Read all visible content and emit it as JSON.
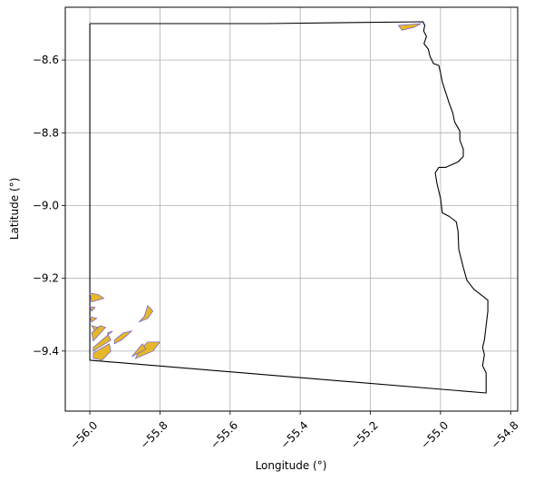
{
  "chart_data": {
    "type": "map",
    "title": "",
    "xlabel": "Longitude (°)",
    "ylabel": "Latitude (°)",
    "xlim": [
      -56.07,
      -54.78
    ],
    "ylim": [
      -9.565,
      -8.455
    ],
    "grid": true,
    "x_ticks": [
      {
        "value": -56.0,
        "label": "−56.0"
      },
      {
        "value": -55.8,
        "label": "−55.8"
      },
      {
        "value": -55.6,
        "label": "−55.6"
      },
      {
        "value": -55.4,
        "label": "−55.4"
      },
      {
        "value": -55.2,
        "label": "−55.2"
      },
      {
        "value": -55.0,
        "label": "−55.0"
      },
      {
        "value": -54.8,
        "label": "−54.8"
      }
    ],
    "y_ticks": [
      {
        "value": -8.6,
        "label": "−8.6"
      },
      {
        "value": -8.8,
        "label": "−8.8"
      },
      {
        "value": -9.0,
        "label": "−9.0"
      },
      {
        "value": -9.2,
        "label": "−9.2"
      },
      {
        "value": -9.4,
        "label": "−9.4"
      }
    ],
    "boundary": {
      "color": "#000000",
      "points": [
        [
          -56.0,
          -8.5
        ],
        [
          -55.5,
          -8.5
        ],
        [
          -55.05,
          -8.495
        ],
        [
          -55.045,
          -8.505
        ],
        [
          -55.048,
          -8.52
        ],
        [
          -55.04,
          -8.535
        ],
        [
          -55.047,
          -8.555
        ],
        [
          -55.035,
          -8.57
        ],
        [
          -55.03,
          -8.59
        ],
        [
          -55.02,
          -8.61
        ],
        [
          -55.005,
          -8.615
        ],
        [
          -55.0,
          -8.635
        ],
        [
          -54.995,
          -8.66
        ],
        [
          -54.985,
          -8.69
        ],
        [
          -54.975,
          -8.72
        ],
        [
          -54.965,
          -8.745
        ],
        [
          -54.96,
          -8.77
        ],
        [
          -54.945,
          -8.795
        ],
        [
          -54.945,
          -8.82
        ],
        [
          -54.935,
          -8.845
        ],
        [
          -54.935,
          -8.865
        ],
        [
          -54.95,
          -8.88
        ],
        [
          -54.985,
          -8.895
        ],
        [
          -55.005,
          -8.895
        ],
        [
          -55.015,
          -8.91
        ],
        [
          -55.01,
          -8.94
        ],
        [
          -55.0,
          -8.98
        ],
        [
          -54.995,
          -9.02
        ],
        [
          -54.975,
          -9.03
        ],
        [
          -54.955,
          -9.045
        ],
        [
          -54.95,
          -9.07
        ],
        [
          -54.948,
          -9.12
        ],
        [
          -54.935,
          -9.17
        ],
        [
          -54.925,
          -9.205
        ],
        [
          -54.905,
          -9.23
        ],
        [
          -54.885,
          -9.245
        ],
        [
          -54.865,
          -9.26
        ],
        [
          -54.865,
          -9.29
        ],
        [
          -54.87,
          -9.33
        ],
        [
          -54.875,
          -9.37
        ],
        [
          -54.88,
          -9.39
        ],
        [
          -54.875,
          -9.41
        ],
        [
          -54.88,
          -9.44
        ],
        [
          -54.87,
          -9.46
        ],
        [
          -54.87,
          -9.515
        ],
        [
          -56.0,
          -9.425
        ],
        [
          -56.0,
          -8.5
        ]
      ]
    },
    "polygons": {
      "fill": "#e6b72a",
      "edge": "#6b5fd6",
      "items": [
        [
          [
            -55.12,
            -8.505
          ],
          [
            -55.055,
            -8.5
          ],
          [
            -55.075,
            -8.51
          ],
          [
            -55.11,
            -8.518
          ]
        ],
        [
          [
            -56.0,
            -9.24
          ],
          [
            -55.975,
            -9.245
          ],
          [
            -55.96,
            -9.255
          ],
          [
            -55.995,
            -9.265
          ]
        ],
        [
          [
            -56.0,
            -9.278
          ],
          [
            -55.985,
            -9.28
          ],
          [
            -55.995,
            -9.29
          ]
        ],
        [
          [
            -56.0,
            -9.305
          ],
          [
            -55.98,
            -9.31
          ],
          [
            -55.995,
            -9.32
          ]
        ],
        [
          [
            -55.995,
            -9.33
          ],
          [
            -55.975,
            -9.335
          ],
          [
            -55.985,
            -9.345
          ]
        ],
        [
          [
            -55.995,
            -9.35
          ],
          [
            -55.97,
            -9.33
          ],
          [
            -55.955,
            -9.335
          ],
          [
            -55.99,
            -9.372
          ]
        ],
        [
          [
            -55.99,
            -9.39
          ],
          [
            -55.99,
            -9.4
          ],
          [
            -55.94,
            -9.37
          ],
          [
            -55.95,
            -9.35
          ],
          [
            -55.935,
            -9.345
          ]
        ],
        [
          [
            -55.93,
            -9.38
          ],
          [
            -55.93,
            -9.37
          ],
          [
            -55.905,
            -9.35
          ],
          [
            -55.88,
            -9.345
          ],
          [
            -55.91,
            -9.37
          ]
        ],
        [
          [
            -55.99,
            -9.405
          ],
          [
            -55.99,
            -9.42
          ],
          [
            -55.965,
            -9.425
          ],
          [
            -55.94,
            -9.4
          ],
          [
            -55.945,
            -9.38
          ]
        ],
        [
          [
            -55.86,
            -9.32
          ],
          [
            -55.845,
            -9.305
          ],
          [
            -55.835,
            -9.275
          ],
          [
            -55.82,
            -9.29
          ],
          [
            -55.835,
            -9.31
          ]
        ],
        [
          [
            -55.86,
            -9.4
          ],
          [
            -55.835,
            -9.375
          ],
          [
            -55.8,
            -9.375
          ],
          [
            -55.82,
            -9.4
          ],
          [
            -55.845,
            -9.41
          ],
          [
            -55.87,
            -9.42
          ]
        ],
        [
          [
            -55.88,
            -9.415
          ],
          [
            -55.85,
            -9.38
          ],
          [
            -55.84,
            -9.395
          ]
        ]
      ]
    }
  }
}
